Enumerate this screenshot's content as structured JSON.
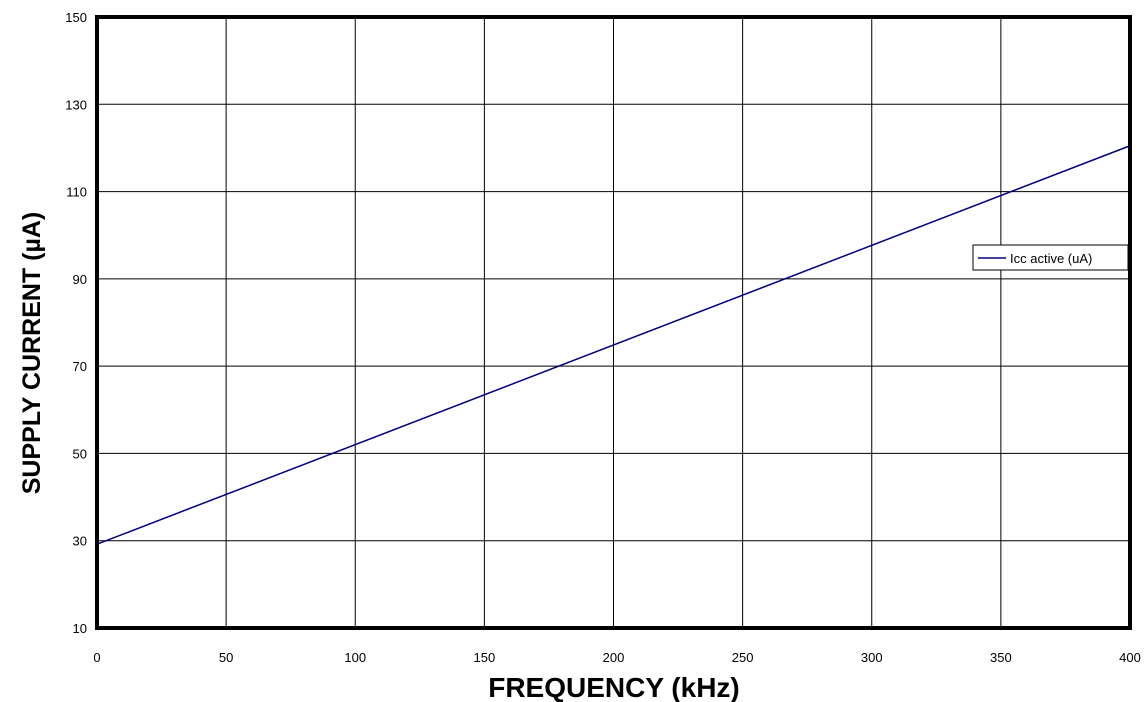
{
  "chart_data": {
    "type": "line",
    "xlabel": "FREQUENCY (kHz)",
    "ylabel": "SUPPLY CURRENT (µA)",
    "xlim": [
      0,
      400
    ],
    "ylim": [
      10,
      150
    ],
    "xticks": [
      "0",
      "50",
      "100",
      "150",
      "200",
      "250",
      "300",
      "350",
      "400"
    ],
    "yticks": [
      "10",
      "30",
      "50",
      "70",
      "90",
      "110",
      "130",
      "150"
    ],
    "grid": true,
    "legend": "right",
    "series": [
      {
        "name": "Icc active (uA)",
        "color": "#000080",
        "x": [
          0,
          400
        ],
        "y": [
          29.2,
          120.5
        ]
      }
    ]
  }
}
